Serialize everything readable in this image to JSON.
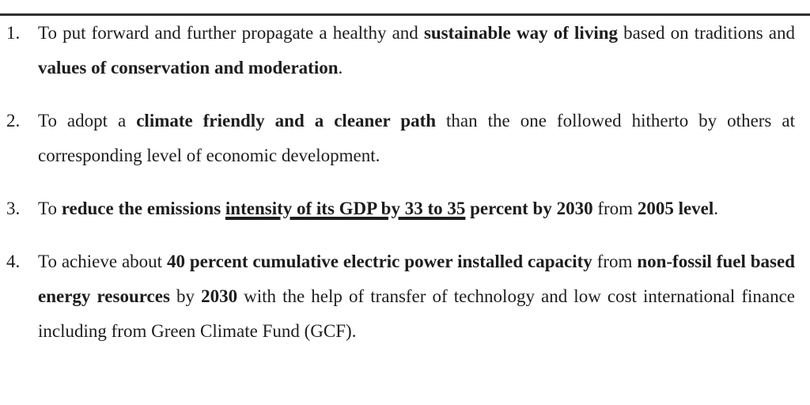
{
  "page": {
    "colors": {
      "bg": "#ffffff",
      "text": "#1d1d1d",
      "rule": "#303030"
    }
  },
  "goals": {
    "items": [
      {
        "number": "1.",
        "segments": [
          {
            "text": "To put forward and further propagate a healthy and ",
            "bold": false
          },
          {
            "text": "sustainable way of living",
            "bold": true
          },
          {
            "text": " based on traditions and ",
            "bold": false
          },
          {
            "text": "values of conservation and moderation",
            "bold": true
          },
          {
            "text": ".",
            "bold": false
          }
        ]
      },
      {
        "number": "2.",
        "segments": [
          {
            "text": "To adopt a ",
            "bold": false
          },
          {
            "text": "climate friendly and a cleaner path",
            "bold": true
          },
          {
            "text": " than the one followed hitherto by others at corresponding level of economic development.",
            "bold": false
          }
        ]
      },
      {
        "number": "3.",
        "segments": [
          {
            "text": "To ",
            "bold": false
          },
          {
            "text": "reduce the emissions ",
            "bold": true
          },
          {
            "text": "intensity of its GDP by 33 to 35",
            "bold": true,
            "underline": true
          },
          {
            "text": " percent by 2030",
            "bold": true
          },
          {
            "text": " from ",
            "bold": false
          },
          {
            "text": "2005 level",
            "bold": true
          },
          {
            "text": ".",
            "bold": false
          }
        ]
      },
      {
        "number": "4.",
        "segments": [
          {
            "text": "To achieve about ",
            "bold": false
          },
          {
            "text": "40 percent cumulative electric power installed capacity",
            "bold": true
          },
          {
            "text": " from ",
            "bold": false
          },
          {
            "text": "non-fossil fuel based energy resources",
            "bold": true
          },
          {
            "text": " by ",
            "bold": false
          },
          {
            "text": "2030",
            "bold": true
          },
          {
            "text": " with the help of transfer of technology and low cost international finance including from Green Climate Fund (GCF).",
            "bold": false
          }
        ]
      }
    ]
  }
}
